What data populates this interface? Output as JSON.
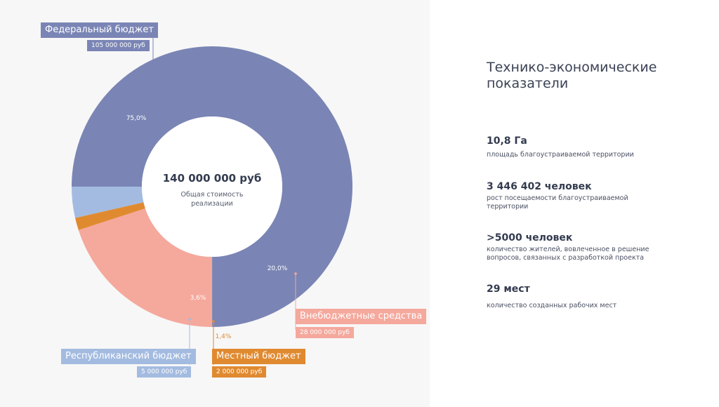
{
  "chart_data": {
    "type": "pie",
    "donut": true,
    "center_value": "140 000 000 руб",
    "center_label": "Общая стоимость реализации",
    "slices": [
      {
        "name": "Федеральный бюджет",
        "value": 105000000,
        "value_label": "105 000 000 руб",
        "percent": 75.0,
        "percent_label": "75,0%",
        "color": "#7a85b5"
      },
      {
        "name": "Внебюджетные средства",
        "value": 28000000,
        "value_label": "28 000 000 руб",
        "percent": 20.0,
        "percent_label": "20,0%",
        "color": "#f5a89c"
      },
      {
        "name": "Местный бюджет",
        "value": 2000000,
        "value_label": "2 000 000 руб",
        "percent": 1.4,
        "percent_label": "1,4%",
        "color": "#e08a30"
      },
      {
        "name": "Республиканский бюджет",
        "value": 5000000,
        "value_label": "5 000 000 руб",
        "percent": 3.6,
        "percent_label": "3,6%",
        "color": "#a3bbe0"
      }
    ]
  },
  "right_panel": {
    "title": "Технико-экономические показатели",
    "kpis": [
      {
        "value": "10,8 Га",
        "desc": "площадь благоустраиваемой территории"
      },
      {
        "value": "3 446 402 человек",
        "desc": "рост посещаемости  благоустраиваемой территории"
      },
      {
        "value": ">5000 человек",
        "desc": "количество жителей, вовлеченное в решение вопросов, связанных с разработкой проекта"
      },
      {
        "value": "29 мест",
        "desc": "количество созданных рабочих мест"
      }
    ]
  }
}
